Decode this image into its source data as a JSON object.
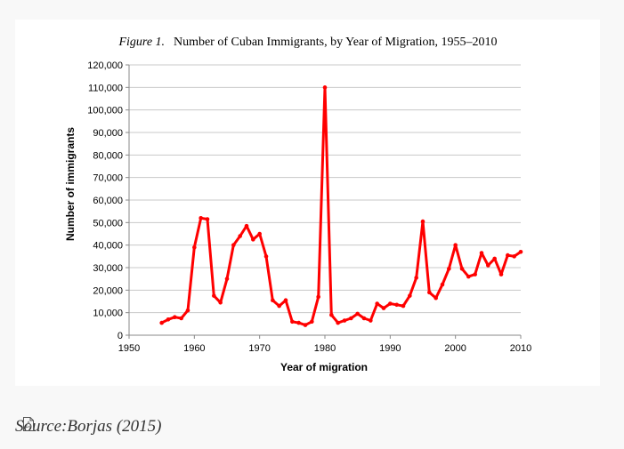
{
  "source": {
    "label": "Source:",
    "icon": "pdf-file-icon",
    "link_text": "Borjas (2015)"
  },
  "chart_data": {
    "type": "line",
    "figure_label": "Figure 1.",
    "title": "Number of Cuban Immigrants, by Year of Migration, 1955–2010",
    "xlabel": "Year of migration",
    "ylabel": "Number of immigrants",
    "xlim": [
      1950,
      2010
    ],
    "ylim": [
      0,
      120000
    ],
    "xticks": [
      1950,
      1960,
      1970,
      1980,
      1990,
      2000,
      2010
    ],
    "yticks": [
      0,
      10000,
      20000,
      30000,
      40000,
      50000,
      60000,
      70000,
      80000,
      90000,
      100000,
      110000,
      120000
    ],
    "ytick_labels": [
      "0",
      "10,000",
      "20,000",
      "30,000",
      "40,000",
      "50,000",
      "60,000",
      "70,000",
      "80,000",
      "90,000",
      "100,000",
      "110,000",
      "120,000"
    ],
    "grid": true,
    "line_color": "#ff0000",
    "series": [
      {
        "name": "Cuban immigrants",
        "x": [
          1955,
          1956,
          1957,
          1958,
          1959,
          1960,
          1961,
          1962,
          1963,
          1964,
          1965,
          1966,
          1967,
          1968,
          1969,
          1970,
          1971,
          1972,
          1973,
          1974,
          1975,
          1976,
          1977,
          1978,
          1979,
          1980,
          1981,
          1982,
          1983,
          1984,
          1985,
          1986,
          1987,
          1988,
          1989,
          1990,
          1991,
          1992,
          1993,
          1994,
          1995,
          1996,
          1997,
          1998,
          1999,
          2000,
          2001,
          2002,
          2003,
          2004,
          2005,
          2006,
          2007,
          2008,
          2009,
          2010
        ],
        "values": [
          5500,
          7000,
          8000,
          7500,
          11000,
          39000,
          52000,
          51500,
          17500,
          14500,
          25000,
          40000,
          44000,
          48500,
          42500,
          45000,
          35000,
          15500,
          13000,
          15500,
          6000,
          5500,
          4500,
          6000,
          17000,
          110000,
          9000,
          5500,
          6500,
          7500,
          9500,
          7500,
          6500,
          14000,
          12000,
          14000,
          13500,
          13000,
          17500,
          25500,
          50500,
          19000,
          16500,
          22500,
          29500,
          40000,
          29500,
          26000,
          27000,
          36500,
          31000,
          34000,
          27000,
          35500,
          35000,
          37000
        ]
      }
    ]
  }
}
